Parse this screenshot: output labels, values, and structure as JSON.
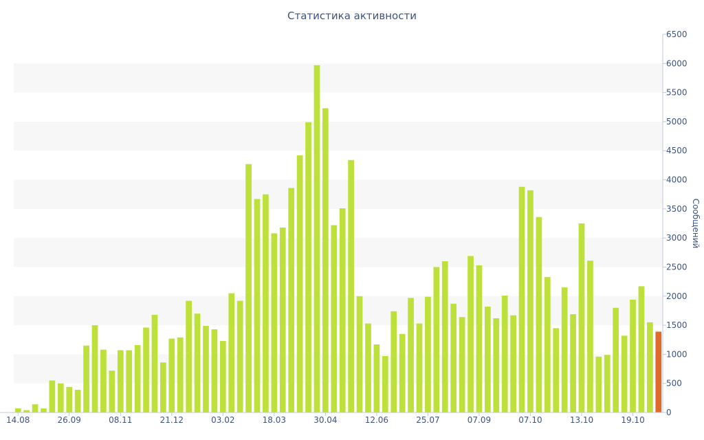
{
  "chart_data": {
    "type": "bar",
    "title": "Статистика активности",
    "ylabel": "Сообщений",
    "xlabel": "",
    "ylim": [
      0,
      6500
    ],
    "y_ticks": [
      0,
      500,
      1000,
      1500,
      2000,
      2500,
      3000,
      3500,
      4000,
      4500,
      5000,
      5500,
      6000,
      6500
    ],
    "x_tick_labels": [
      {
        "label": "14.08",
        "index": 0
      },
      {
        "label": "26.09",
        "index": 6
      },
      {
        "label": "08.11",
        "index": 12
      },
      {
        "label": "21.12",
        "index": 18
      },
      {
        "label": "03.02",
        "index": 24
      },
      {
        "label": "18.03",
        "index": 30
      },
      {
        "label": "30.04",
        "index": 36
      },
      {
        "label": "12.06",
        "index": 42
      },
      {
        "label": "25.07",
        "index": 48
      },
      {
        "label": "07.09",
        "index": 54
      },
      {
        "label": "07.10",
        "index": 60
      },
      {
        "label": "13.10",
        "index": 66
      },
      {
        "label": "19.10",
        "index": 72
      }
    ],
    "grid": true,
    "bar_color": "#bde03a",
    "highlight_color": "#e06a2c",
    "highlight_index": 75,
    "band_color": "#f7f7f7",
    "values": [
      70,
      40,
      140,
      70,
      550,
      500,
      440,
      390,
      1150,
      1500,
      1080,
      720,
      1070,
      1070,
      1160,
      1460,
      1680,
      860,
      1270,
      1290,
      1920,
      1700,
      1490,
      1430,
      1230,
      2050,
      1920,
      4270,
      3670,
      3750,
      3080,
      3180,
      3860,
      4420,
      4990,
      5970,
      5230,
      3220,
      3510,
      4340,
      2000,
      1530,
      1170,
      970,
      1740,
      1350,
      1970,
      1530,
      1990,
      2500,
      2600,
      1870,
      1640,
      2690,
      2530,
      1820,
      1620,
      2010,
      1670,
      3880,
      3820,
      3360,
      2330,
      1450,
      2150,
      1690,
      3250,
      2610,
      960,
      990,
      1800,
      1320,
      1940,
      2170,
      1550,
      1390
    ]
  }
}
